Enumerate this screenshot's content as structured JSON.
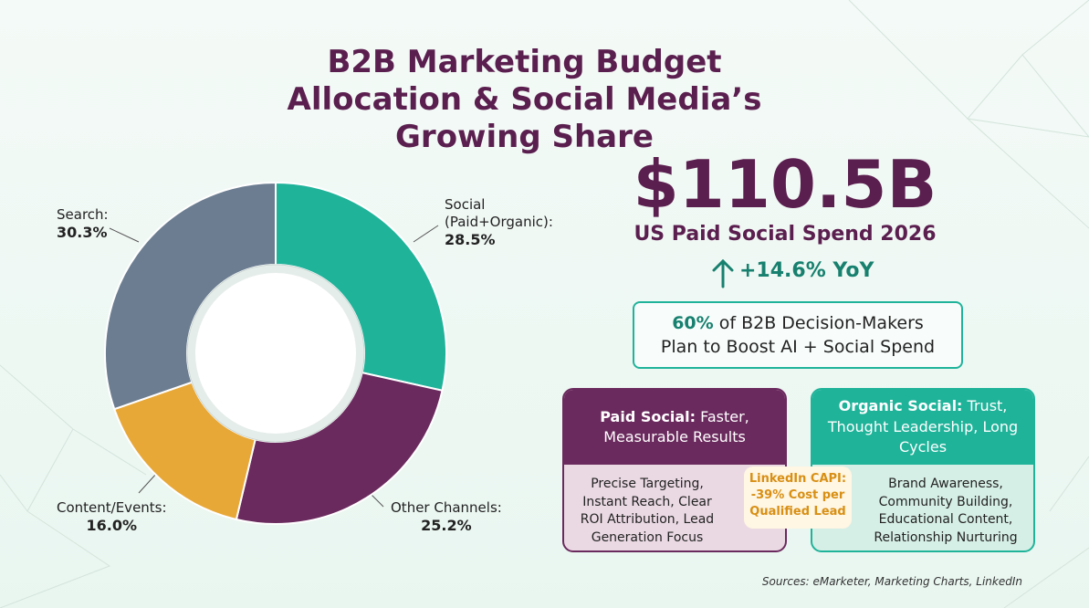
{
  "chart_data": {
    "type": "donut",
    "title": "B2B Marketing Budget Allocation & Social Media’s Growing Share",
    "categories": [
      "Social (Paid+Organic):",
      "Other Channels:",
      "Content/Events:",
      "Search:"
    ],
    "values": [
      28.5,
      25.2,
      16.0,
      30.3
    ],
    "value_labels": [
      "28.5%",
      "25.2%",
      "16.0%",
      "30.3%"
    ],
    "colors": [
      "#1fb39a",
      "#6b2a5e",
      "#e8a838",
      "#6c7d91"
    ]
  },
  "headline": {
    "value": "$110.5B",
    "caption": "US Paid Social Spend 2026",
    "growth": "+14.6% YoY"
  },
  "stat": {
    "emphasis": "60%",
    "line1": "of B2B Decision-Makers",
    "line2": "Plan to Boost AI + Social Spend"
  },
  "paid": {
    "label": "Paid Social:",
    "headline": "Faster, Measurable Results",
    "body": "Precise Targeting, Instant Reach, Clear ROI Attribution, Lead Generation Focus"
  },
  "badge": {
    "line1": "LinkedIn CAPI:",
    "line2": "-39% Cost per Qualified Lead"
  },
  "organic": {
    "label": "Organic Social:",
    "headline": "Trust, Thought Leadership, Long Cycles",
    "body": "Brand Awareness, Community Building, Educational Content, Relationship Nurturing"
  },
  "source": "Sources: eMarketer, Marketing Charts, LinkedIn"
}
